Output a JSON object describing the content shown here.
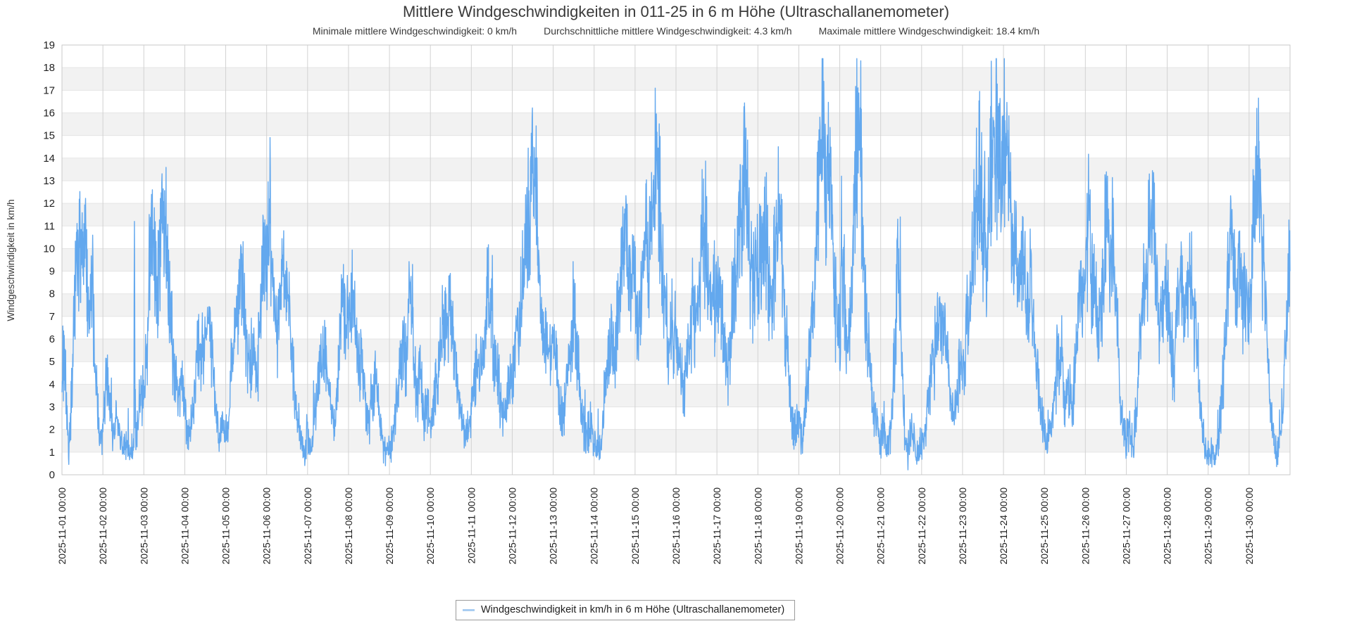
{
  "title": "Mittlere Windgeschwindigkeiten in 011-25 in 6 m Höhe (Ultraschallanemometer)",
  "subtitle": {
    "min": "Minimale mittlere Windgeschwindigkeit: 0 km/h",
    "avg": "Durchschnittliche mittlere Windgeschwindigkeit: 4.3 km/h",
    "max": "Maximale mittlere Windgeschwindigkeit: 18.4 km/h"
  },
  "y_axis": {
    "label": "Windgeschwindigkeit in km/h",
    "ticks": [
      0,
      1,
      2,
      3,
      4,
      5,
      6,
      7,
      8,
      9,
      10,
      11,
      12,
      13,
      14,
      15,
      16,
      17,
      18,
      19
    ]
  },
  "x_axis": {
    "tick_labels": [
      "2025-11-01 00:00",
      "2025-11-02 00:00",
      "2025-11-03 00:00",
      "2025-11-04 00:00",
      "2025-11-05 00:00",
      "2025-11-06 00:00",
      "2025-11-07 00:00",
      "2025-11-08 00:00",
      "2025-11-09 00:00",
      "2025-11-10 00:00",
      "2025-11-11 00:00",
      "2025-11-12 00:00",
      "2025-11-13 00:00",
      "2025-11-14 00:00",
      "2025-11-15 00:00",
      "2025-11-16 00:00",
      "2025-11-17 00:00",
      "2025-11-18 00:00",
      "2025-11-19 00:00",
      "2025-11-20 00:00",
      "2025-11-21 00:00",
      "2025-11-22 00:00",
      "2025-11-23 00:00",
      "2025-11-24 00:00",
      "2025-11-25 00:00",
      "2025-11-26 00:00",
      "2025-11-27 00:00",
      "2025-11-28 00:00",
      "2025-11-29 00:00",
      "2025-11-30 00:00"
    ]
  },
  "legend": {
    "label": "Windgeschwindigkeit in km/h in 6 m Höhe (Ultraschallanemometer)"
  },
  "colors": {
    "line": "#63a8ee",
    "stripe": "#f2f2f2",
    "grid_h": "#e5e5e5",
    "grid_v": "#d2d2d2",
    "border": "#c9c9c9",
    "tick_text": "#1f1f1f",
    "title_text": "#3a3a3a",
    "legend_marker": "#a9cdf2"
  },
  "chart_data": {
    "type": "line",
    "title": "Mittlere Windgeschwindigkeiten in 011-25 in 6 m Höhe (Ultraschallanemometer)",
    "xlabel": "",
    "ylabel": "Windgeschwindigkeit in km/h",
    "ylim": [
      0,
      19
    ],
    "x_start": "2025-11-01 00:00",
    "x_end": "2025-12-01 00:00",
    "x_days": 30,
    "grid": true,
    "legend_position": "bottom",
    "stats": {
      "min": 0,
      "avg": 4.3,
      "max": 18.4,
      "unit": "km/h"
    },
    "series": [
      {
        "name": "Windgeschwindigkeit in km/h in 6 m Höhe (Ultraschallanemometer)",
        "color": "#63a8ee",
        "unit": "km/h",
        "sample_interval_hours": 2,
        "values_2h": [
          5.0,
          4.5,
          1.0,
          4.0,
          8.5,
          10.0,
          9.0,
          10.0,
          7.0,
          8.0,
          4.0,
          1.5,
          2.0,
          4.5,
          3.0,
          1.5,
          2.5,
          1.8,
          1.0,
          1.5,
          0.8,
          1.2,
          2.0,
          3.5,
          3.5,
          6.0,
          11.0,
          9.5,
          8.0,
          10.5,
          11.0,
          8.5,
          6.5,
          4.5,
          3.5,
          4.0,
          3.0,
          1.5,
          2.5,
          4.0,
          6.0,
          5.0,
          6.5,
          7.0,
          5.0,
          3.0,
          1.5,
          2.5,
          1.5,
          3.0,
          5.5,
          6.5,
          8.0,
          8.5,
          6.0,
          4.5,
          5.5,
          4.0,
          6.5,
          10.5,
          9.0,
          11.5,
          7.5,
          6.0,
          7.5,
          9.0,
          8.5,
          6.0,
          4.0,
          2.5,
          1.5,
          1.0,
          2.0,
          1.0,
          2.5,
          4.0,
          5.0,
          5.5,
          4.0,
          3.0,
          2.5,
          4.5,
          8.0,
          7.0,
          7.5,
          8.5,
          6.0,
          4.5,
          5.0,
          3.0,
          2.0,
          3.5,
          4.5,
          2.5,
          1.5,
          1.0,
          1.0,
          1.5,
          3.0,
          4.5,
          6.0,
          5.0,
          8.5,
          5.5,
          3.5,
          4.5,
          2.5,
          3.0,
          2.5,
          3.0,
          4.5,
          6.0,
          7.0,
          6.5,
          7.5,
          5.5,
          4.0,
          2.5,
          1.5,
          2.0,
          3.0,
          4.0,
          5.0,
          4.5,
          6.0,
          8.5,
          6.5,
          5.0,
          4.0,
          2.5,
          3.0,
          4.5,
          4.0,
          5.5,
          7.0,
          8.5,
          10.0,
          12.0,
          13.5,
          12.0,
          9.0,
          7.0,
          6.0,
          5.5,
          6.0,
          4.5,
          3.0,
          2.5,
          4.0,
          5.5,
          7.5,
          5.0,
          3.5,
          2.0,
          1.5,
          2.5,
          1.5,
          0.8,
          1.5,
          3.5,
          5.0,
          6.5,
          5.5,
          7.0,
          9.0,
          10.5,
          8.5,
          9.5,
          8.0,
          6.5,
          8.5,
          10.5,
          9.0,
          11.5,
          13.5,
          13.0,
          9.5,
          7.0,
          5.5,
          6.5,
          6.5,
          5.0,
          3.5,
          4.5,
          6.0,
          7.5,
          6.5,
          8.5,
          11.5,
          9.0,
          7.5,
          8.0,
          7.5,
          8.5,
          5.5,
          4.5,
          6.5,
          8.0,
          9.5,
          12.0,
          14.0,
          11.0,
          9.0,
          8.5,
          8.5,
          10.5,
          11.5,
          9.0,
          8.0,
          10.0,
          12.0,
          9.5,
          6.5,
          4.5,
          2.5,
          2.0,
          2.5,
          1.5,
          3.0,
          5.0,
          7.0,
          9.5,
          13.0,
          15.0,
          12.5,
          13.5,
          9.0,
          7.0,
          6.0,
          10.0,
          5.0,
          6.5,
          10.0,
          15.5,
          14.0,
          9.5,
          6.0,
          4.5,
          2.5,
          2.0,
          1.5,
          2.5,
          1.0,
          2.0,
          5.0,
          9.5,
          6.0,
          1.5,
          1.0,
          2.0,
          1.5,
          1.0,
          1.5,
          2.0,
          3.5,
          4.5,
          5.5,
          6.5,
          5.5,
          6.0,
          4.0,
          2.5,
          3.0,
          4.5,
          4.5,
          6.0,
          8.0,
          9.5,
          12.0,
          13.5,
          11.0,
          9.5,
          13.0,
          16.0,
          14.5,
          13.0,
          14.0,
          15.0,
          12.0,
          10.5,
          9.0,
          8.0,
          9.5,
          7.0,
          8.5,
          5.5,
          4.0,
          3.0,
          2.0,
          1.0,
          2.5,
          3.5,
          5.5,
          4.5,
          3.0,
          4.0,
          3.0,
          4.5,
          7.0,
          8.0,
          8.0,
          12.0,
          9.0,
          7.5,
          6.5,
          8.5,
          12.0,
          10.0,
          10.5,
          8.0,
          4.0,
          2.0,
          1.5,
          2.0,
          1.2,
          3.0,
          5.5,
          7.5,
          9.5,
          11.5,
          12.0,
          8.0,
          6.5,
          7.5,
          8.0,
          6.0,
          4.5,
          7.0,
          9.0,
          6.5,
          8.0,
          9.0,
          7.0,
          4.5,
          2.5,
          1.0,
          0.8,
          1.0,
          0.6,
          1.5,
          3.5,
          6.0,
          9.0,
          11.0,
          8.0,
          9.5,
          7.0,
          8.0,
          6.5,
          10.5,
          14.5,
          13.0,
          10.0,
          7.0,
          4.0,
          2.0,
          1.0,
          1.2,
          3.5,
          8.0,
          9.0
        ],
        "peaks": [
          {
            "hours": 42.5,
            "value": 11.2
          },
          {
            "hours": 53.0,
            "value": 12.6
          },
          {
            "hours": 118.0,
            "value": 11.4
          },
          {
            "hours": 121.7,
            "value": 12.2
          },
          {
            "hours": 165.0,
            "value": 9.3
          },
          {
            "hours": 205.5,
            "value": 9.3
          },
          {
            "hours": 252.3,
            "value": 9.7
          },
          {
            "hours": 277.5,
            "value": 14.0
          },
          {
            "hours": 330.5,
            "value": 11.3
          },
          {
            "hours": 349.0,
            "value": 13.8
          },
          {
            "hours": 378.0,
            "value": 12.3
          },
          {
            "hours": 402.0,
            "value": 14.8
          },
          {
            "hours": 421.7,
            "value": 12.4
          },
          {
            "hours": 447.5,
            "value": 15.5
          },
          {
            "hours": 457.0,
            "value": 13.2
          },
          {
            "hours": 468.3,
            "value": 18.3
          },
          {
            "hours": 491.5,
            "value": 11.4
          },
          {
            "hours": 541.0,
            "value": 14.3
          },
          {
            "hours": 547.7,
            "value": 18.4
          },
          {
            "hours": 553.7,
            "value": 15.1
          },
          {
            "hours": 602.8,
            "value": 12.6
          },
          {
            "hours": 613.0,
            "value": 13.2
          },
          {
            "hours": 640.5,
            "value": 12.9
          },
          {
            "hours": 685.3,
            "value": 12.1
          },
          {
            "hours": 700.5,
            "value": 16.2
          }
        ]
      }
    ],
    "render": {
      "subpoints_per_sample": 12,
      "noise_seed": 42,
      "noise_base": 0.55,
      "noise_scale": 0.3,
      "gust_chance": 0.02,
      "gust_max": 2.2
    }
  }
}
